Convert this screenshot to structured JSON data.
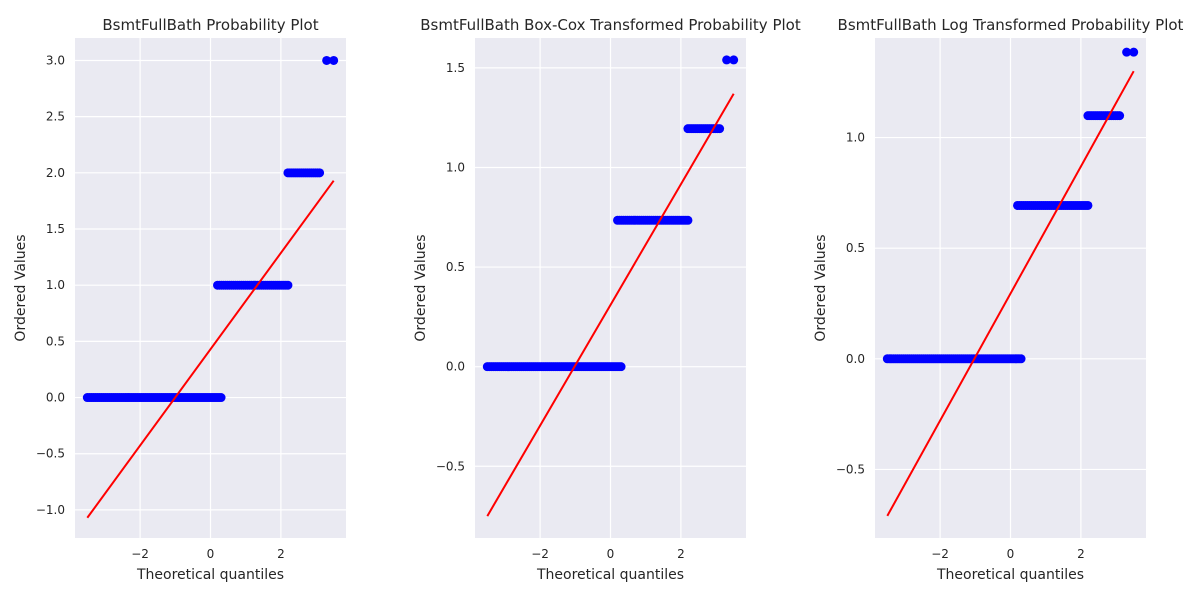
{
  "chart_data": [
    {
      "type": "scatter",
      "title": "BsmtFullBath Probability Plot",
      "xlabel": "Theoretical quantiles",
      "ylabel": "Ordered Values",
      "xlim": [
        -3.85,
        3.85
      ],
      "ylim": [
        -1.25,
        3.2
      ],
      "xticks": [
        -2,
        0,
        2
      ],
      "xtick_labels": [
        "−2",
        "0",
        "2"
      ],
      "yticks": [
        -1.0,
        -0.5,
        0.0,
        0.5,
        1.0,
        1.5,
        2.0,
        2.5,
        3.0
      ],
      "ytick_labels": [
        "−1.0",
        "−0.5",
        "0.0",
        "0.5",
        "1.0",
        "1.5",
        "2.0",
        "2.5",
        "3.0"
      ],
      "series": [
        {
          "kind": "points",
          "groups": [
            {
              "y": 0.0,
              "x_from": -3.5,
              "x_to": 0.3
            },
            {
              "y": 1.0,
              "x_from": 0.2,
              "x_to": 2.2
            },
            {
              "y": 2.0,
              "x_from": 2.2,
              "x_to": 3.1
            },
            {
              "y": 3.0,
              "x": [
                3.3,
                3.5
              ]
            }
          ]
        },
        {
          "kind": "fit_line",
          "x": [
            -3.5,
            3.5
          ],
          "y": [
            -1.07,
            1.93
          ]
        }
      ]
    },
    {
      "type": "scatter",
      "title": "BsmtFullBath Box-Cox Transformed Probability Plot",
      "xlabel": "Theoretical quantiles",
      "ylabel": "Ordered Values",
      "xlim": [
        -3.85,
        3.85
      ],
      "ylim": [
        -0.86,
        1.65
      ],
      "xticks": [
        -2,
        0,
        2
      ],
      "xtick_labels": [
        "−2",
        "0",
        "2"
      ],
      "yticks": [
        -0.5,
        0.0,
        0.5,
        1.0,
        1.5
      ],
      "ytick_labels": [
        "−0.5",
        "0.0",
        "0.5",
        "1.0",
        "1.5"
      ],
      "series": [
        {
          "kind": "points",
          "groups": [
            {
              "y": 0.0,
              "x_from": -3.5,
              "x_to": 0.3
            },
            {
              "y": 0.735,
              "x_from": 0.2,
              "x_to": 2.2
            },
            {
              "y": 1.195,
              "x_from": 2.2,
              "x_to": 3.1
            },
            {
              "y": 1.54,
              "x": [
                3.3,
                3.5
              ]
            }
          ]
        },
        {
          "kind": "fit_line",
          "x": [
            -3.5,
            3.5
          ],
          "y": [
            -0.75,
            1.37
          ]
        }
      ]
    },
    {
      "type": "scatter",
      "title": "BsmtFullBath Log Transformed Probability Plot",
      "xlabel": "Theoretical quantiles",
      "ylabel": "Ordered Values",
      "xlim": [
        -3.85,
        3.85
      ],
      "ylim": [
        -0.81,
        1.45
      ],
      "xticks": [
        -2,
        0,
        2
      ],
      "xtick_labels": [
        "−2",
        "0",
        "2"
      ],
      "yticks": [
        -0.5,
        0.0,
        0.5,
        1.0
      ],
      "ytick_labels": [
        "−0.5",
        "0.0",
        "0.5",
        "1.0"
      ],
      "series": [
        {
          "kind": "points",
          "groups": [
            {
              "y": 0.0,
              "x_from": -3.5,
              "x_to": 0.3
            },
            {
              "y": 0.693,
              "x_from": 0.2,
              "x_to": 2.2
            },
            {
              "y": 1.099,
              "x_from": 2.2,
              "x_to": 3.1
            },
            {
              "y": 1.386,
              "x": [
                3.3,
                3.5
              ]
            }
          ]
        },
        {
          "kind": "fit_line",
          "x": [
            -3.5,
            3.5
          ],
          "y": [
            -0.71,
            1.3
          ]
        }
      ]
    }
  ],
  "colors": {
    "axes_background": "#eaeaf2",
    "grid": "#ffffff",
    "points": "#0000ff",
    "fit_line": "#ff0000",
    "text": "#262626"
  }
}
